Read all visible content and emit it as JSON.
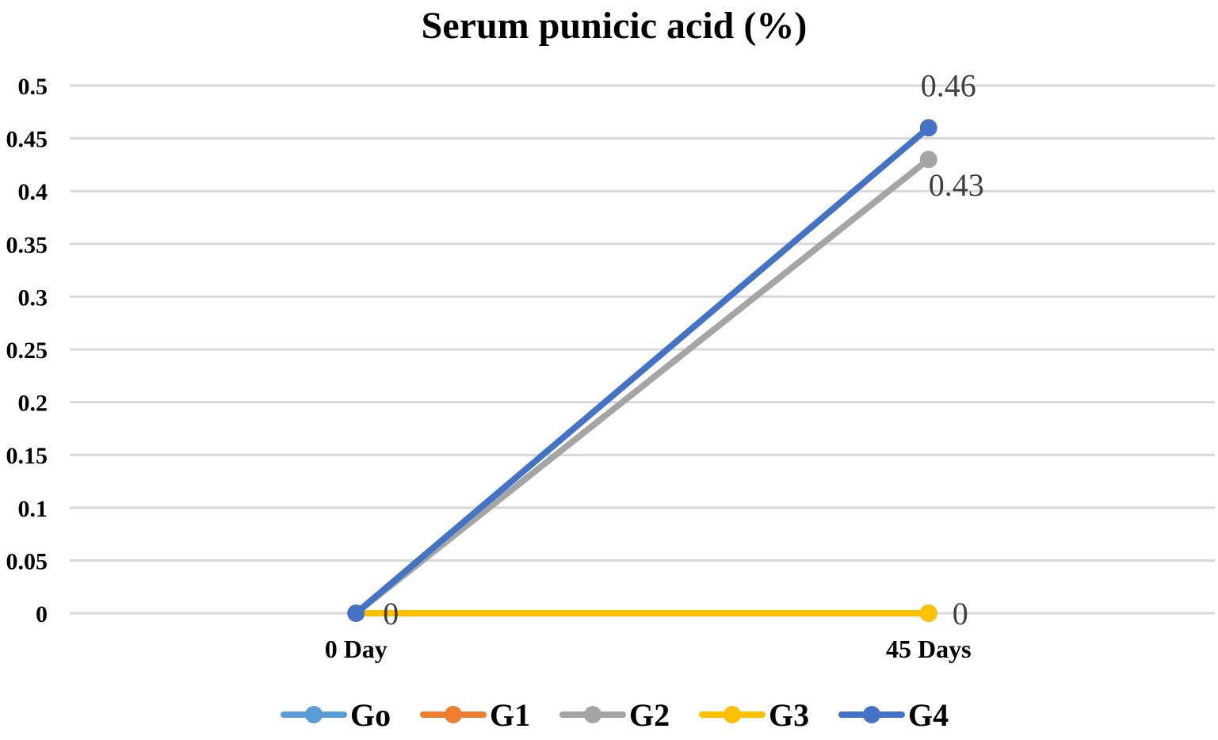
{
  "chart_data": {
    "type": "line",
    "title": "Serum punicic acid (%)",
    "xlabel": "",
    "ylabel": "",
    "categories": [
      "0 Day",
      "45 Days"
    ],
    "ylim": [
      0,
      0.5
    ],
    "yticks": [
      "0",
      "0.05",
      "0.1",
      "0.15",
      "0.2",
      "0.25",
      "0.3",
      "0.35",
      "0.4",
      "0.45",
      "0.5"
    ],
    "grid": true,
    "legend_position": "bottom",
    "series": [
      {
        "name": "Go",
        "values": [
          0,
          0
        ],
        "color": "#5b9bd5"
      },
      {
        "name": "G1",
        "values": [
          0,
          0
        ],
        "color": "#ed7d31"
      },
      {
        "name": "G2",
        "values": [
          0,
          0.43
        ],
        "color": "#a5a5a5"
      },
      {
        "name": "G3",
        "values": [
          0,
          0
        ],
        "color": "#ffc000"
      },
      {
        "name": "G4",
        "values": [
          0,
          0.46
        ],
        "color": "#4472c4"
      }
    ],
    "data_labels": [
      {
        "series": "G3",
        "category": "0 Day",
        "text": "0"
      },
      {
        "series": "G3",
        "category": "45 Days",
        "text": "0"
      },
      {
        "series": "G2",
        "category": "45 Days",
        "text": "0.43"
      },
      {
        "series": "G4",
        "category": "45 Days",
        "text": "0.46"
      }
    ]
  }
}
